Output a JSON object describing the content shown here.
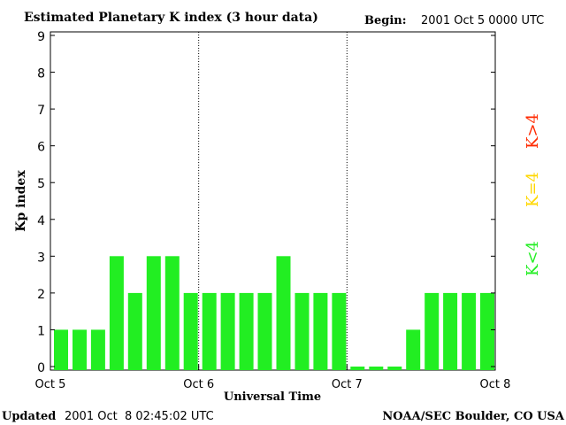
{
  "header": {
    "title": "Estimated Planetary K index (3 hour data)",
    "begin_label": "Begin:",
    "begin_value": "2001 Oct 5 0000 UTC"
  },
  "footer": {
    "updated_label": "Updated",
    "updated_value": "2001 Oct  8 02:45:02 UTC",
    "credit": "NOAA/SEC Boulder, CO USA"
  },
  "legend": {
    "items": [
      {
        "label": "K<4",
        "color": "#22ee22"
      },
      {
        "label": "K=4",
        "color": "#ffd700"
      },
      {
        "label": "K>4",
        "color": "#ff2a00"
      }
    ]
  },
  "chart_data": {
    "type": "bar",
    "title": "Estimated Planetary K index (3 hour data)",
    "xlabel": "Universal Time",
    "ylabel": "Kp index",
    "ylim": [
      0,
      9
    ],
    "yticks": [
      0,
      1,
      2,
      3,
      4,
      5,
      6,
      7,
      8,
      9
    ],
    "xticks": [
      "Oct 5",
      "Oct 6",
      "Oct 7",
      "Oct 8"
    ],
    "bar_color": "#22ee22",
    "values": [
      1,
      1,
      1,
      3,
      2,
      3,
      3,
      2,
      2,
      2,
      2,
      2,
      3,
      2,
      2,
      2,
      0,
      0,
      0,
      1,
      2,
      2,
      2,
      2
    ],
    "day_separators": [
      "Oct 6",
      "Oct 7"
    ]
  }
}
